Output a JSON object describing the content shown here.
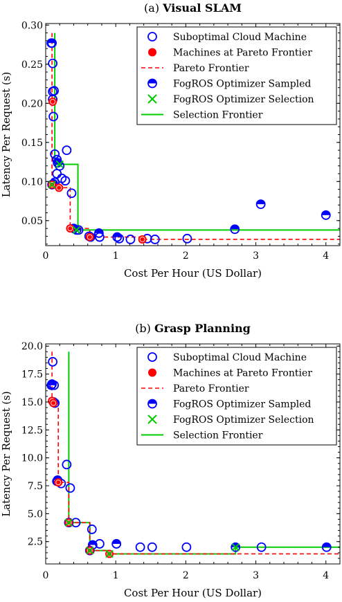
{
  "chart_data": [
    {
      "type": "scatter",
      "panel_label": "(a)",
      "title": "Visual SLAM",
      "xlabel": "Cost Per Hour (US Dollar)",
      "ylabel": "Latency Per Request (s)",
      "xlim": [
        0,
        4.2
      ],
      "ylim": [
        0.018,
        0.302
      ],
      "xticks": [
        0,
        1,
        2,
        3,
        4
      ],
      "xtick_labels": [
        "0",
        "1",
        "2",
        "3",
        "4"
      ],
      "yticks": [
        0.05,
        0.1,
        0.15,
        0.2,
        0.25,
        0.3
      ],
      "ytick_labels": [
        "0.05",
        "0.10",
        "0.15",
        "0.20",
        "0.25",
        "0.30"
      ],
      "legend_position": "top-right",
      "legend": [
        {
          "label": "Suboptimal Cloud Machine",
          "marker": "open-circle"
        },
        {
          "label": "Machines at Pareto Frontier",
          "marker": "red-filled-circle"
        },
        {
          "label": "Pareto Frontier",
          "marker": "red-dashed-line"
        },
        {
          "label": "FogROS Optimizer Sampled",
          "marker": "half-filled-circle"
        },
        {
          "label": "FogROS Optimizer Selection",
          "marker": "green-x"
        },
        {
          "label": "Selection Frontier",
          "marker": "green-line"
        }
      ],
      "suboptimal": [
        [
          0.09,
          0.277
        ],
        [
          0.1,
          0.251
        ],
        [
          0.1,
          0.215
        ],
        [
          0.12,
          0.216
        ],
        [
          0.1,
          0.205
        ],
        [
          0.11,
          0.183
        ],
        [
          0.13,
          0.135
        ],
        [
          0.16,
          0.128
        ],
        [
          0.16,
          0.11
        ],
        [
          0.13,
          0.099
        ],
        [
          0.2,
          0.12
        ],
        [
          0.23,
          0.104
        ],
        [
          0.28,
          0.101
        ],
        [
          0.3,
          0.14
        ],
        [
          0.37,
          0.085
        ],
        [
          0.47,
          0.038
        ],
        [
          0.62,
          0.03
        ],
        [
          0.77,
          0.029
        ],
        [
          1.05,
          0.027
        ],
        [
          1.21,
          0.026
        ],
        [
          1.45,
          0.027
        ],
        [
          1.56,
          0.026
        ],
        [
          2.02,
          0.027
        ]
      ],
      "pareto_points": [
        [
          0.1,
          0.202
        ],
        [
          0.09,
          0.096
        ],
        [
          0.19,
          0.092
        ],
        [
          0.35,
          0.04
        ],
        [
          0.63,
          0.029
        ],
        [
          1.38,
          0.026
        ]
      ],
      "pareto_frontier": [
        [
          0.09,
          0.29
        ],
        [
          0.09,
          0.096
        ],
        [
          0.19,
          0.096
        ],
        [
          0.19,
          0.092
        ],
        [
          0.35,
          0.092
        ],
        [
          0.35,
          0.04
        ],
        [
          0.63,
          0.04
        ],
        [
          0.63,
          0.029
        ],
        [
          1.38,
          0.029
        ],
        [
          1.38,
          0.026
        ],
        [
          4.2,
          0.026
        ]
      ],
      "sampled": [
        [
          0.08,
          0.277
        ],
        [
          0.09,
          0.096
        ],
        [
          0.11,
          0.097
        ],
        [
          0.17,
          0.124
        ],
        [
          0.4,
          0.04
        ],
        [
          0.44,
          0.038
        ],
        [
          0.64,
          0.029
        ],
        [
          0.76,
          0.034
        ],
        [
          1.02,
          0.029
        ],
        [
          2.7,
          0.039
        ],
        [
          3.07,
          0.071
        ],
        [
          4.0,
          0.057
        ]
      ],
      "selection": [
        [
          0.09,
          0.096
        ],
        [
          0.2,
          0.122
        ],
        [
          0.44,
          0.038
        ]
      ],
      "selection_frontier": [
        [
          0.13,
          0.29
        ],
        [
          0.13,
          0.122
        ],
        [
          0.46,
          0.122
        ],
        [
          0.46,
          0.038
        ],
        [
          4.2,
          0.038
        ]
      ]
    },
    {
      "type": "scatter",
      "panel_label": "(b)",
      "title": "Grasp Planning",
      "xlabel": "Cost Per Hour (US Dollar)",
      "ylabel": "Latency Per Request (s)",
      "xlim": [
        0,
        4.2
      ],
      "ylim": [
        0.5,
        20.2
      ],
      "xticks": [
        0,
        1,
        2,
        3,
        4
      ],
      "xtick_labels": [
        "0",
        "1",
        "2",
        "3",
        "4"
      ],
      "yticks": [
        2.5,
        5.0,
        7.5,
        10.0,
        12.5,
        15.0,
        17.5,
        20.0
      ],
      "ytick_labels": [
        "2.5",
        "5.0",
        "7.5",
        "10.0",
        "12.5",
        "15.0",
        "17.5",
        "20.0"
      ],
      "legend_position": "top-right",
      "legend": [
        {
          "label": "Suboptimal Cloud Machine",
          "marker": "open-circle"
        },
        {
          "label": "Machines at Pareto Frontier",
          "marker": "red-filled-circle"
        },
        {
          "label": "Pareto Frontier",
          "marker": "red-dashed-line"
        },
        {
          "label": "FogROS Optimizer Sampled",
          "marker": "half-filled-circle"
        },
        {
          "label": "FogROS Optimizer Selection",
          "marker": "green-x"
        },
        {
          "label": "Selection Frontier",
          "marker": "green-line"
        }
      ],
      "suboptimal": [
        [
          0.09,
          16.6
        ],
        [
          0.1,
          18.6
        ],
        [
          0.12,
          16.5
        ],
        [
          0.13,
          14.9
        ],
        [
          0.16,
          7.9
        ],
        [
          0.22,
          7.7
        ],
        [
          0.3,
          9.4
        ],
        [
          0.35,
          7.3
        ],
        [
          0.43,
          4.2
        ],
        [
          0.66,
          3.6
        ],
        [
          0.77,
          2.3
        ],
        [
          1.35,
          2.0
        ],
        [
          1.52,
          2.0
        ],
        [
          2.01,
          2.0
        ],
        [
          3.08,
          2.0
        ]
      ],
      "pareto_points": [
        [
          0.09,
          15.1
        ],
        [
          0.11,
          14.9
        ],
        [
          0.18,
          7.8
        ],
        [
          0.33,
          4.2
        ],
        [
          0.63,
          1.7
        ],
        [
          0.91,
          1.4
        ]
      ],
      "pareto_frontier": [
        [
          0.09,
          19.5
        ],
        [
          0.09,
          15.1
        ],
        [
          0.11,
          15.1
        ],
        [
          0.11,
          14.9
        ],
        [
          0.18,
          14.9
        ],
        [
          0.18,
          7.8
        ],
        [
          0.33,
          7.8
        ],
        [
          0.33,
          4.2
        ],
        [
          0.63,
          4.2
        ],
        [
          0.63,
          1.7
        ],
        [
          0.91,
          1.7
        ],
        [
          0.91,
          1.4
        ],
        [
          4.2,
          1.4
        ]
      ],
      "sampled": [
        [
          0.08,
          16.5
        ],
        [
          0.11,
          15.0
        ],
        [
          0.17,
          8.0
        ],
        [
          0.33,
          4.2
        ],
        [
          0.63,
          1.7
        ],
        [
          0.67,
          2.2
        ],
        [
          1.01,
          2.3
        ],
        [
          2.71,
          2.0
        ],
        [
          4.01,
          2.0
        ]
      ],
      "selection": [
        [
          0.33,
          4.2
        ],
        [
          0.63,
          1.7
        ],
        [
          0.91,
          1.4
        ],
        [
          2.71,
          2.0
        ]
      ],
      "selection_frontier": [
        [
          0.33,
          19.5
        ],
        [
          0.33,
          4.2
        ],
        [
          0.63,
          4.2
        ],
        [
          0.63,
          1.7
        ],
        [
          0.91,
          1.7
        ],
        [
          0.91,
          1.4
        ],
        [
          2.71,
          1.4
        ],
        [
          2.71,
          2.0
        ],
        [
          4.2,
          2.0
        ]
      ]
    }
  ]
}
